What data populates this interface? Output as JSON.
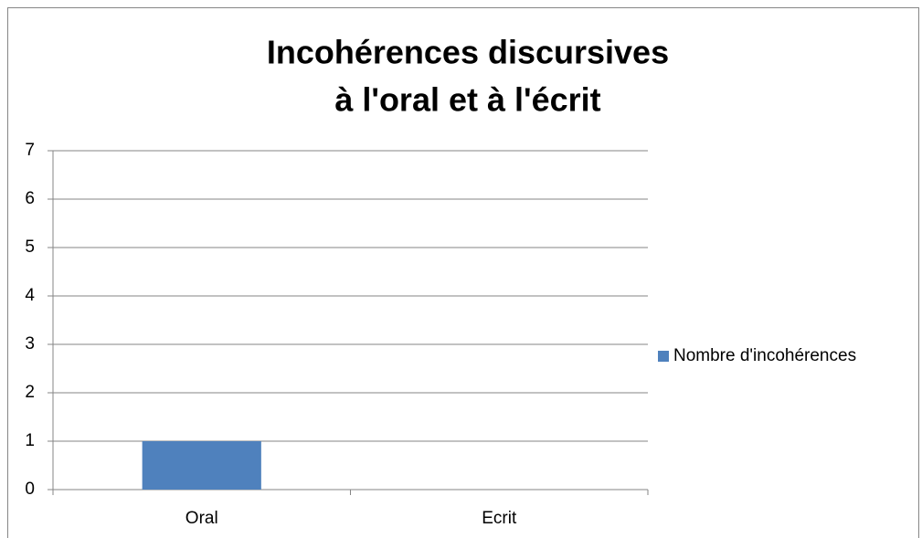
{
  "chart_data": {
    "type": "bar",
    "title": [
      "Incohérences discursives",
      "à l'oral et à l'écrit"
    ],
    "categories": [
      "Oral",
      "Ecrit"
    ],
    "series": [
      {
        "name": "Nombre d'incohérences",
        "color": "#4f81bd",
        "values": [
          1,
          0
        ]
      }
    ],
    "ylim": [
      0,
      7
    ],
    "yticks": [
      0,
      1,
      2,
      3,
      4,
      5,
      6,
      7
    ],
    "grid": true,
    "legend": "right"
  }
}
